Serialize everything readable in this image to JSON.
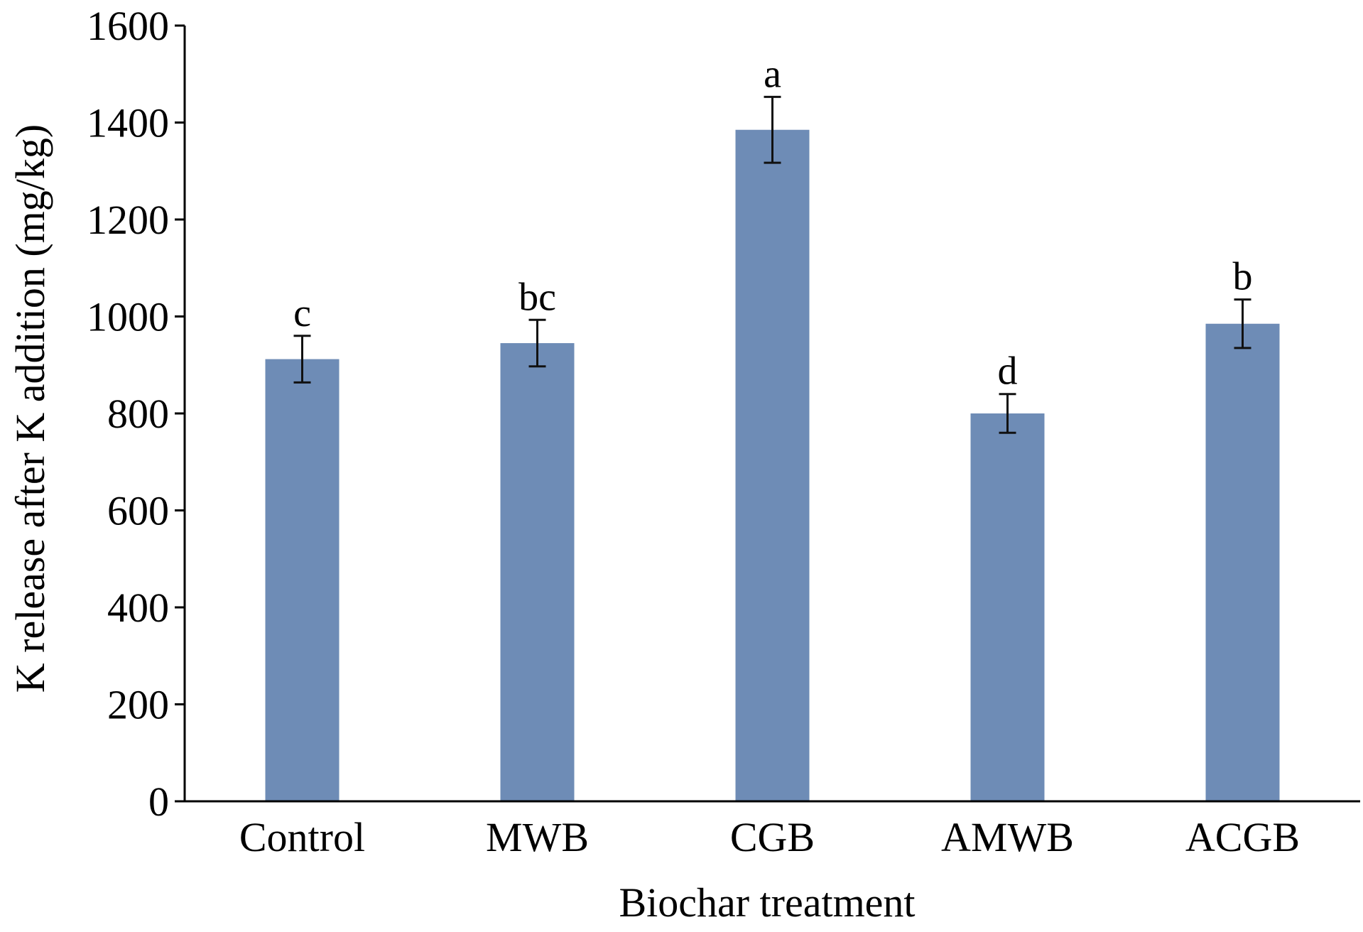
{
  "chart_data": {
    "type": "bar",
    "title": "",
    "xlabel": "Biochar treatment",
    "ylabel": "K release after K addition (mg/kg)",
    "categories": [
      "Control",
      "MWB",
      "CGB",
      "AMWB",
      "ACGB"
    ],
    "values": [
      912,
      945,
      1385,
      800,
      985
    ],
    "errors": [
      48,
      48,
      68,
      40,
      50
    ],
    "significance": [
      "c",
      "bc",
      "a",
      "d",
      "b"
    ],
    "yticks": [
      0,
      200,
      400,
      600,
      800,
      1000,
      1200,
      1400,
      1600
    ],
    "ylim": [
      0,
      1600
    ],
    "bar_color": "#6e8cb6",
    "grid": false,
    "legend": "none"
  }
}
